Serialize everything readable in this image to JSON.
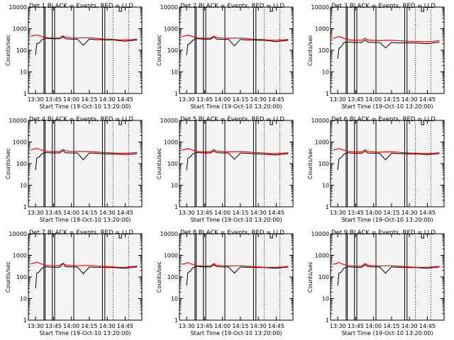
{
  "colors": {
    "events": "#000000",
    "lld": "#ff0000",
    "grid": "#000000",
    "background": "#f4f4f4"
  },
  "y_ticks": [
    "1",
    "10",
    "100",
    "1000",
    "10000"
  ],
  "x_ticks": [
    "13:30",
    "13:45",
    "14:00",
    "14:15",
    "14:30",
    "14:45"
  ],
  "chart_data": [
    {
      "type": "line",
      "title": "Det 1  BLACK = Events, RED = LLD",
      "xlabel": "Start Time (19-Oct-10 13:20:00)",
      "ylabel": "Counts/sec",
      "ylog": true,
      "ylim": [
        1,
        10000
      ],
      "x": [
        "13:26",
        "13:30",
        "13:31",
        "13:33",
        "13:35",
        "13:38",
        "13:40",
        "13:45",
        "13:50",
        "13:53",
        "13:55",
        "14:00",
        "14:05",
        "14:10",
        "14:15",
        "14:20",
        "14:25",
        "14:30",
        "14:35",
        "14:40",
        "14:45",
        "14:50",
        "14:55"
      ],
      "series": [
        {
          "name": "Events",
          "values": [
            null,
            60,
            200,
            220,
            300,
            360,
            350,
            340,
            340,
            420,
            340,
            330,
            330,
            170,
            330,
            310,
            310,
            300,
            300,
            280,
            260,
            280,
            300
          ]
        },
        {
          "name": "LLD",
          "values": [
            450,
            500,
            520,
            480,
            440,
            400,
            380,
            370,
            370,
            470,
            400,
            380,
            370,
            380,
            380,
            360,
            340,
            330,
            320,
            300,
            300,
            310,
            330
          ]
        }
      ]
    },
    {
      "type": "line",
      "title": "Det 2  BLACK = Events, RED = LLD",
      "xlabel": "Start Time (19-Oct-10 13:20:00)",
      "ylabel": "Counts/sec",
      "ylog": true,
      "ylim": [
        1,
        10000
      ],
      "x": [
        "13:26",
        "13:30",
        "13:31",
        "13:33",
        "13:35",
        "13:38",
        "13:40",
        "13:45",
        "13:50",
        "13:53",
        "13:55",
        "14:00",
        "14:05",
        "14:10",
        "14:15",
        "14:20",
        "14:25",
        "14:30",
        "14:35",
        "14:40",
        "14:45",
        "14:50",
        "14:55"
      ],
      "series": [
        {
          "name": "Events",
          "values": [
            null,
            60,
            190,
            210,
            290,
            350,
            340,
            330,
            330,
            410,
            330,
            320,
            320,
            160,
            320,
            300,
            300,
            290,
            290,
            270,
            250,
            270,
            290
          ]
        },
        {
          "name": "LLD",
          "values": [
            430,
            490,
            510,
            470,
            430,
            390,
            370,
            360,
            360,
            460,
            390,
            370,
            360,
            370,
            370,
            350,
            330,
            320,
            310,
            290,
            290,
            300,
            320
          ]
        }
      ]
    },
    {
      "type": "line",
      "title": "Det 3  BLACK = Events, RED = LLD",
      "xlabel": "Start Time (19-Oct-10 13:20:00)",
      "ylabel": "Counts/sec",
      "ylog": true,
      "ylim": [
        1,
        10000
      ],
      "x": [
        "13:26",
        "13:30",
        "13:31",
        "13:33",
        "13:35",
        "13:38",
        "13:40",
        "13:45",
        "13:50",
        "13:53",
        "13:55",
        "14:00",
        "14:05",
        "14:10",
        "14:15",
        "14:20",
        "14:25",
        "14:30",
        "14:35",
        "14:40",
        "14:45",
        "14:50",
        "14:55"
      ],
      "series": [
        {
          "name": "Events",
          "values": [
            null,
            40,
            120,
            150,
            220,
            250,
            240,
            230,
            230,
            300,
            240,
            230,
            230,
            130,
            230,
            220,
            220,
            220,
            220,
            210,
            200,
            220,
            240
          ]
        },
        {
          "name": "LLD",
          "values": [
            350,
            420,
            440,
            400,
            360,
            320,
            300,
            290,
            290,
            360,
            300,
            290,
            280,
            290,
            290,
            280,
            270,
            260,
            260,
            250,
            250,
            260,
            280
          ]
        }
      ]
    },
    {
      "type": "line",
      "title": "Det 4  BLACK = Events, RED = LLD",
      "xlabel": "Start Time (19-Oct-10 13:20:00)",
      "ylabel": "Counts/sec",
      "ylog": true,
      "ylim": [
        1,
        10000
      ],
      "x": [
        "13:26",
        "13:30",
        "13:31",
        "13:33",
        "13:35",
        "13:38",
        "13:40",
        "13:45",
        "13:50",
        "13:53",
        "13:55",
        "14:00",
        "14:05",
        "14:10",
        "14:15",
        "14:20",
        "14:25",
        "14:30",
        "14:35",
        "14:40",
        "14:45",
        "14:50",
        "14:55"
      ],
      "series": [
        {
          "name": "Events",
          "values": [
            null,
            50,
            180,
            200,
            280,
            330,
            320,
            310,
            310,
            400,
            320,
            310,
            310,
            150,
            310,
            300,
            290,
            280,
            280,
            270,
            260,
            270,
            290
          ]
        },
        {
          "name": "LLD",
          "values": [
            430,
            490,
            520,
            470,
            430,
            390,
            370,
            360,
            360,
            460,
            390,
            370,
            360,
            370,
            360,
            350,
            330,
            320,
            310,
            300,
            300,
            310,
            330
          ]
        }
      ]
    },
    {
      "type": "line",
      "title": "Det 5  BLACK = Events, RED = LLD",
      "xlabel": "Start Time (19-Oct-10 13:20:00)",
      "ylabel": "Counts/sec",
      "ylog": true,
      "ylim": [
        1,
        10000
      ],
      "x": [
        "13:26",
        "13:30",
        "13:31",
        "13:33",
        "13:35",
        "13:38",
        "13:40",
        "13:45",
        "13:50",
        "13:53",
        "13:55",
        "14:00",
        "14:05",
        "14:10",
        "14:15",
        "14:20",
        "14:25",
        "14:30",
        "14:35",
        "14:40",
        "14:45",
        "14:50",
        "14:55"
      ],
      "series": [
        {
          "name": "Events",
          "values": [
            null,
            50,
            180,
            200,
            280,
            330,
            320,
            310,
            310,
            390,
            320,
            310,
            310,
            160,
            310,
            300,
            290,
            280,
            270,
            260,
            250,
            270,
            290
          ]
        },
        {
          "name": "LLD",
          "values": [
            420,
            480,
            510,
            460,
            420,
            380,
            360,
            350,
            350,
            450,
            380,
            360,
            350,
            360,
            360,
            350,
            330,
            320,
            310,
            290,
            290,
            300,
            320
          ]
        }
      ]
    },
    {
      "type": "line",
      "title": "Det 6  BLACK = Events, RED = LLD",
      "xlabel": "Start Time (19-Oct-10 13:20:00)",
      "ylabel": "Counts/sec",
      "ylog": true,
      "ylim": [
        1,
        10000
      ],
      "x": [
        "13:26",
        "13:30",
        "13:31",
        "13:33",
        "13:35",
        "13:38",
        "13:40",
        "13:45",
        "13:50",
        "13:53",
        "13:55",
        "14:00",
        "14:05",
        "14:10",
        "14:15",
        "14:20",
        "14:25",
        "14:30",
        "14:35",
        "14:40",
        "14:45",
        "14:50",
        "14:55"
      ],
      "series": [
        {
          "name": "Events",
          "values": [
            null,
            50,
            170,
            190,
            270,
            320,
            310,
            300,
            300,
            380,
            310,
            300,
            300,
            150,
            300,
            290,
            290,
            280,
            280,
            270,
            260,
            270,
            290
          ]
        },
        {
          "name": "LLD",
          "values": [
            420,
            480,
            510,
            460,
            420,
            380,
            360,
            350,
            350,
            440,
            370,
            350,
            340,
            350,
            350,
            340,
            320,
            310,
            300,
            290,
            290,
            300,
            320
          ]
        }
      ]
    },
    {
      "type": "line",
      "title": "Det 7  BLACK = Events, RED = LLD",
      "xlabel": "Start Time (19-Oct-10 13:20:00)",
      "ylabel": "Counts/sec",
      "ylog": true,
      "ylim": [
        1,
        10000
      ],
      "x": [
        "13:26",
        "13:30",
        "13:31",
        "13:33",
        "13:35",
        "13:38",
        "13:40",
        "13:45",
        "13:50",
        "13:53",
        "13:55",
        "14:00",
        "14:05",
        "14:10",
        "14:15",
        "14:20",
        "14:25",
        "14:30",
        "14:35",
        "14:40",
        "14:45",
        "14:50",
        "14:55"
      ],
      "series": [
        {
          "name": "Events",
          "values": [
            null,
            30,
            150,
            170,
            250,
            300,
            290,
            280,
            280,
            420,
            300,
            290,
            290,
            140,
            290,
            280,
            280,
            270,
            270,
            260,
            250,
            270,
            290
          ]
        },
        {
          "name": "LLD",
          "values": [
            400,
            460,
            490,
            440,
            400,
            360,
            340,
            330,
            330,
            440,
            360,
            340,
            330,
            340,
            340,
            330,
            310,
            300,
            290,
            280,
            280,
            300,
            320
          ]
        }
      ]
    },
    {
      "type": "line",
      "title": "Det 8  BLACK = Events, RED = LLD",
      "xlabel": "Start Time (19-Oct-10 13:20:00)",
      "ylabel": "Counts/sec",
      "ylog": true,
      "ylim": [
        1,
        10000
      ],
      "x": [
        "13:26",
        "13:30",
        "13:31",
        "13:33",
        "13:35",
        "13:38",
        "13:40",
        "13:45",
        "13:50",
        "13:53",
        "13:55",
        "14:00",
        "14:05",
        "14:10",
        "14:15",
        "14:20",
        "14:25",
        "14:30",
        "14:35",
        "14:40",
        "14:45",
        "14:50",
        "14:55"
      ],
      "series": [
        {
          "name": "Events",
          "values": [
            null,
            40,
            160,
            180,
            260,
            310,
            300,
            290,
            290,
            370,
            300,
            290,
            290,
            150,
            290,
            280,
            280,
            270,
            270,
            260,
            250,
            270,
            290
          ]
        },
        {
          "name": "LLD",
          "values": [
            380,
            440,
            470,
            420,
            380,
            340,
            330,
            320,
            320,
            420,
            350,
            330,
            320,
            330,
            330,
            320,
            300,
            290,
            280,
            280,
            280,
            290,
            310
          ]
        }
      ]
    },
    {
      "type": "line",
      "title": "Det 9  BLACK = Events, RED = LLD",
      "xlabel": "Start Time (19-Oct-10 13:20:00)",
      "ylabel": "Counts/sec",
      "ylog": true,
      "ylim": [
        1,
        10000
      ],
      "x": [
        "13:26",
        "13:30",
        "13:31",
        "13:33",
        "13:35",
        "13:38",
        "13:40",
        "13:45",
        "13:50",
        "13:53",
        "13:55",
        "14:00",
        "14:05",
        "14:10",
        "14:15",
        "14:20",
        "14:25",
        "14:30",
        "14:35",
        "14:40",
        "14:45",
        "14:50",
        "14:55"
      ],
      "series": [
        {
          "name": "Events",
          "values": [
            null,
            40,
            150,
            170,
            250,
            300,
            290,
            280,
            280,
            370,
            300,
            290,
            290,
            150,
            290,
            280,
            280,
            270,
            270,
            260,
            250,
            270,
            290
          ]
        },
        {
          "name": "LLD",
          "values": [
            380,
            440,
            470,
            420,
            380,
            340,
            330,
            320,
            320,
            420,
            350,
            330,
            320,
            330,
            330,
            320,
            300,
            290,
            280,
            280,
            280,
            290,
            310
          ]
        }
      ]
    }
  ]
}
